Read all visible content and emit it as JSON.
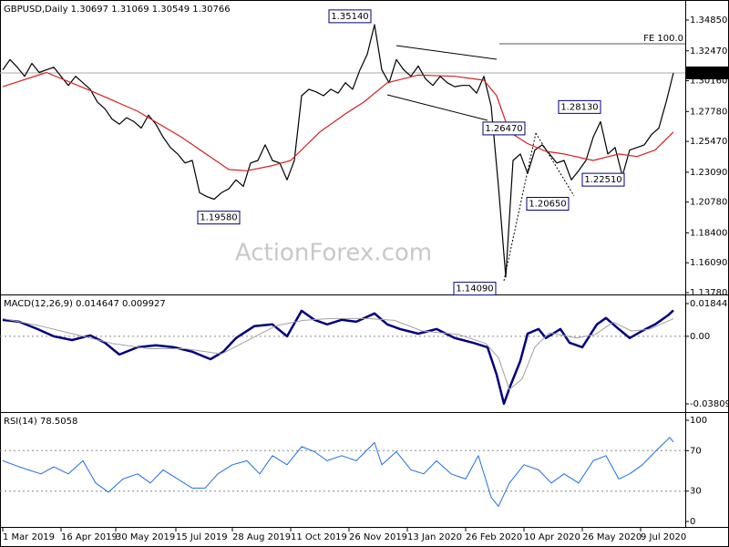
{
  "chart_data": [
    {
      "type": "line",
      "title": "GBPUSD,Daily  1.30697 1.31069 1.30549 1.30766",
      "watermark": "ActionForex.com",
      "xlim": [
        -1.5,
        374.5
      ],
      "ylim": [
        1.1371,
        1.364
      ],
      "yticks": [
        {
          "value": 1.3485,
          "label": "1.34850"
        },
        {
          "value": 1.3247,
          "label": "1.32470"
        },
        {
          "value": 1.3016,
          "label": "1.30160"
        },
        {
          "value": 1.2778,
          "label": "1.27780"
        },
        {
          "value": 1.2547,
          "label": "1.25470"
        },
        {
          "value": 1.2309,
          "label": "1.23090"
        },
        {
          "value": 1.2078,
          "label": "1.20780"
        },
        {
          "value": 1.184,
          "label": "1.18400"
        },
        {
          "value": 1.1609,
          "label": "1.16090"
        },
        {
          "value": 1.1378,
          "label": "1.13780"
        }
      ],
      "current": {
        "value": 1.30766,
        "label": "1.30766"
      },
      "fe_level": {
        "value": 1.3302,
        "label": "FE 100.0"
      },
      "annotations": [
        {
          "x": 205,
          "value": 1.3514,
          "label": "1.35140"
        },
        {
          "x": 131,
          "value": 1.1958,
          "label": "1.19580"
        },
        {
          "x": 273,
          "value": 1.1409,
          "label": "1.14090"
        },
        {
          "x": 268,
          "value": 1.2647,
          "label": "1.26470"
        },
        {
          "x": 313,
          "value": 1.2065,
          "label": "1.20650"
        },
        {
          "x": 330,
          "value": 1.2813,
          "label": "1.28130"
        },
        {
          "x": 336,
          "value": 1.2251,
          "label": "1.22510"
        }
      ],
      "series": [
        {
          "color": "#000000",
          "x": [
            0,
            4,
            8,
            12,
            16,
            20,
            24,
            28,
            32,
            36,
            40,
            44,
            48,
            52,
            56,
            60,
            64,
            68,
            72,
            76,
            80,
            84,
            88,
            92,
            96,
            100,
            104,
            108,
            112,
            116,
            120,
            124,
            128,
            132,
            136,
            140,
            144,
            148,
            152,
            156,
            160,
            164,
            168,
            172,
            176,
            180,
            184,
            188,
            192,
            196,
            200,
            204,
            208,
            212,
            216,
            220,
            224,
            228,
            232,
            236,
            240,
            244,
            248,
            252,
            256,
            260,
            264,
            268,
            272,
            276,
            280,
            284,
            288,
            292,
            296,
            300,
            304,
            308,
            312,
            316,
            320,
            324,
            328,
            332,
            336,
            340,
            344,
            348,
            352,
            356,
            360,
            364,
            368
          ],
          "values": [
            1.31,
            1.318,
            1.312,
            1.305,
            1.315,
            1.308,
            1.31,
            1.312,
            1.305,
            1.298,
            1.305,
            1.3,
            1.295,
            1.285,
            1.28,
            1.272,
            1.268,
            1.273,
            1.27,
            1.265,
            1.275,
            1.268,
            1.258,
            1.25,
            1.245,
            1.238,
            1.24,
            1.215,
            1.212,
            1.21,
            1.215,
            1.218,
            1.225,
            1.22,
            1.238,
            1.24,
            1.252,
            1.24,
            1.238,
            1.225,
            1.24,
            1.29,
            1.295,
            1.293,
            1.29,
            1.295,
            1.292,
            1.3,
            1.295,
            1.31,
            1.322,
            1.345,
            1.31,
            1.3,
            1.318,
            1.31,
            1.305,
            1.313,
            1.303,
            1.298,
            1.305,
            1.3,
            1.297,
            1.298,
            1.298,
            1.292,
            1.305,
            1.282,
            1.22,
            1.15,
            1.24,
            1.245,
            1.23,
            1.248,
            1.252,
            1.245,
            1.238,
            1.24,
            1.225,
            1.232,
            1.24,
            1.258,
            1.27,
            1.245,
            1.25,
            1.228,
            1.248,
            1.25,
            1.252,
            1.26,
            1.265,
            1.285,
            1.30766
          ]
        },
        {
          "color": "#d42020",
          "x": [
            0,
            24,
            48,
            74,
            98,
            124,
            134,
            148,
            158,
            174,
            188,
            198,
            211,
            228,
            248,
            264,
            271,
            278,
            288,
            298,
            308,
            324,
            338,
            348,
            358,
            368
          ],
          "values": [
            1.297,
            1.308,
            1.294,
            1.278,
            1.258,
            1.233,
            1.232,
            1.236,
            1.24,
            1.262,
            1.276,
            1.285,
            1.3,
            1.306,
            1.305,
            1.302,
            1.29,
            1.262,
            1.253,
            1.247,
            1.245,
            1.24,
            1.245,
            1.243,
            1.248,
            1.262
          ]
        }
      ]
    },
    {
      "type": "line",
      "title": "MACD(12,26,9) 0.014647 0.009927",
      "xlim": [
        -1.5,
        374.5
      ],
      "ylim": [
        -0.0422,
        0.02255
      ],
      "yticks": [
        0.018442,
        {
          "value": 0,
          "label": "0.00"
        },
        -0.038095
      ],
      "levels": [
        0
      ],
      "series": [
        {
          "color": "#000080",
          "width": 2.5,
          "x": [
            0,
            9,
            19,
            28,
            38,
            48,
            56,
            64,
            74,
            84,
            94,
            104,
            114,
            121,
            128,
            138,
            148,
            156,
            164,
            171,
            178,
            186,
            194,
            204,
            211,
            218,
            228,
            238,
            248,
            258,
            266,
            271,
            275,
            278,
            284,
            288,
            294,
            298,
            306,
            311,
            318,
            326,
            331,
            338,
            344,
            351,
            358,
            365,
            368
          ],
          "values": [
            0.00925,
            0.0082,
            0.0041,
            0,
            -0.0021,
            0.0005,
            -0.0036,
            -0.0103,
            -0.0062,
            -0.0051,
            -0.0062,
            -0.0087,
            -0.0129,
            -0.0087,
            -0.001,
            0.0057,
            0.0067,
            0,
            0.0144,
            0.0093,
            0.0067,
            0.0093,
            0.0082,
            0.0129,
            0.0067,
            0.0041,
            0.0015,
            0.0041,
            -0.001,
            -0.0036,
            -0.0062,
            -0.0216,
            -0.038,
            -0.0293,
            -0.0139,
            0.0015,
            0.0041,
            -0.001,
            0.0041,
            -0.0036,
            -0.0062,
            0.0067,
            0.0103,
            0.0041,
            -0.001,
            0.0031,
            0.0067,
            0.0118,
            0.014647
          ]
        },
        {
          "color": "#a0a0a0",
          "width": 1,
          "x": [
            0,
            20,
            40,
            60,
            80,
            100,
            120,
            135,
            150,
            165,
            180,
            200,
            215,
            230,
            250,
            265,
            272,
            278,
            285,
            292,
            300,
            315,
            325,
            335,
            345,
            355,
            368
          ],
          "values": [
            0.01,
            0.006,
            0.001,
            -0.004,
            -0.007,
            -0.007,
            -0.01,
            -0.002,
            0.006,
            0.009,
            0.01,
            0.01,
            0.009,
            0.003,
            0.001,
            -0.004,
            -0.012,
            -0.03,
            -0.024,
            -0.006,
            0.002,
            -0.001,
            0.001,
            0.008,
            0.003,
            0.004,
            0.009927
          ]
        }
      ]
    },
    {
      "type": "line",
      "title": "RSI(14) 78.5058",
      "xlim": [
        -1.5,
        374.5
      ],
      "ylim": [
        -5.4,
        106.3
      ],
      "yticks": [
        100,
        70,
        30,
        0
      ],
      "levels": [
        70,
        30
      ],
      "xticks": [
        {
          "value": 0,
          "label": "1 Mar 2019"
        },
        {
          "value": 32,
          "label": "16 Apr 2019"
        },
        {
          "value": 62,
          "label": "30 May 2019"
        },
        {
          "value": 95,
          "label": "15 Jul 2019"
        },
        {
          "value": 126,
          "label": "28 Aug 2019"
        },
        {
          "value": 158,
          "label": "11 Oct 2019"
        },
        {
          "value": 190,
          "label": "26 Nov 2019"
        },
        {
          "value": 222,
          "label": "13 Jan 2020"
        },
        {
          "value": 254,
          "label": "26 Feb 2020"
        },
        {
          "value": 286,
          "label": "10 Apr 2020"
        },
        {
          "value": 318,
          "label": "26 May 2020"
        },
        {
          "value": 350,
          "label": "9 Jul 2020"
        }
      ],
      "series": [
        {
          "color": "#1e6fe0",
          "width": 1,
          "x": [
            0,
            6,
            14,
            21,
            28,
            36,
            44,
            51,
            58,
            66,
            74,
            81,
            88,
            96,
            104,
            111,
            118,
            126,
            134,
            141,
            148,
            156,
            164,
            171,
            178,
            186,
            194,
            204,
            208,
            216,
            224,
            231,
            238,
            246,
            254,
            261,
            268,
            272,
            278,
            286,
            294,
            301,
            308,
            316,
            324,
            331,
            338,
            344,
            351,
            358,
            366,
            368
          ],
          "values": [
            60,
            56,
            51,
            47,
            54,
            47,
            60,
            38,
            29,
            42,
            47,
            38,
            51,
            42,
            33,
            33,
            47,
            56,
            60,
            47,
            65,
            56,
            74,
            69,
            60,
            65,
            60,
            78,
            56,
            69,
            51,
            47,
            60,
            47,
            42,
            65,
            24,
            15,
            38,
            56,
            51,
            38,
            47,
            38,
            60,
            65,
            42,
            47,
            56,
            69,
            83,
            78.5058
          ]
        }
      ]
    }
  ]
}
